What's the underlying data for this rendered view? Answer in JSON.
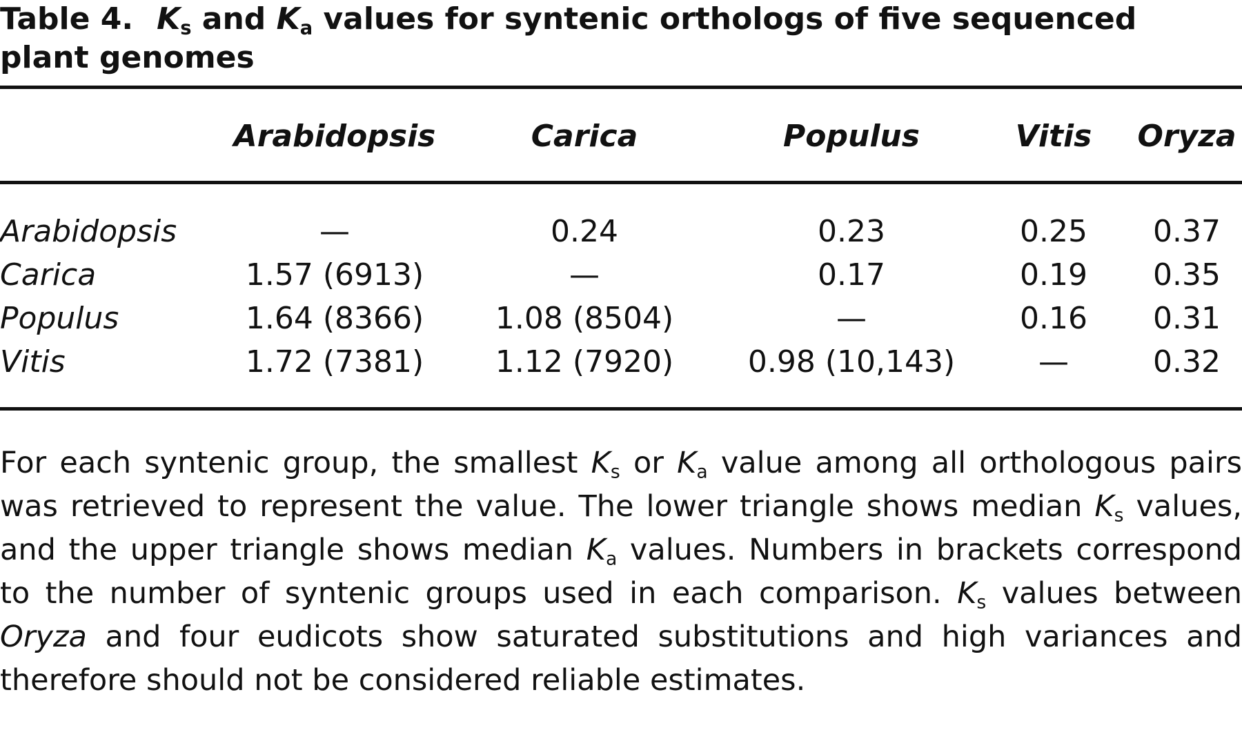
{
  "title": {
    "label": "Table 4.",
    "parts": [
      "K",
      "s",
      " and ",
      "K",
      "a",
      " values for syntenic orthologs of five sequenced plant genomes"
    ]
  },
  "table": {
    "columns": [
      "Arabidopsis",
      "Carica",
      "Populus",
      "Vitis",
      "Oryza"
    ],
    "rows": [
      {
        "label": "Arabidopsis",
        "cells": [
          "—",
          "0.24",
          "0.23",
          "0.25",
          "0.37"
        ]
      },
      {
        "label": "Carica",
        "cells": [
          "1.57 (6913)",
          "—",
          "0.17",
          "0.19",
          "0.35"
        ]
      },
      {
        "label": "Populus",
        "cells": [
          "1.64 (8366)",
          "1.08 (8504)",
          "—",
          "0.16",
          "0.31"
        ]
      },
      {
        "label": "Vitis",
        "cells": [
          "1.72 (7381)",
          "1.12 (7920)",
          "0.98 (10,143)",
          "—",
          "0.32"
        ]
      }
    ]
  },
  "footnote": {
    "parts": [
      "For each syntenic group, the smallest ",
      "K",
      "s",
      " or ",
      "K",
      "a",
      " value among all orthologous pairs was retrieved to represent the value. The lower triangle shows median ",
      "K",
      "s",
      " values, and the upper triangle shows median ",
      "K",
      "a",
      " values. Numbers in brackets correspond to the number of syntenic groups used in each comparison. ",
      "K",
      "s",
      " values between ",
      "Oryza",
      " and four eudicots show saturated substitutions and high variances and therefore should not be considered reliable estimates."
    ]
  }
}
